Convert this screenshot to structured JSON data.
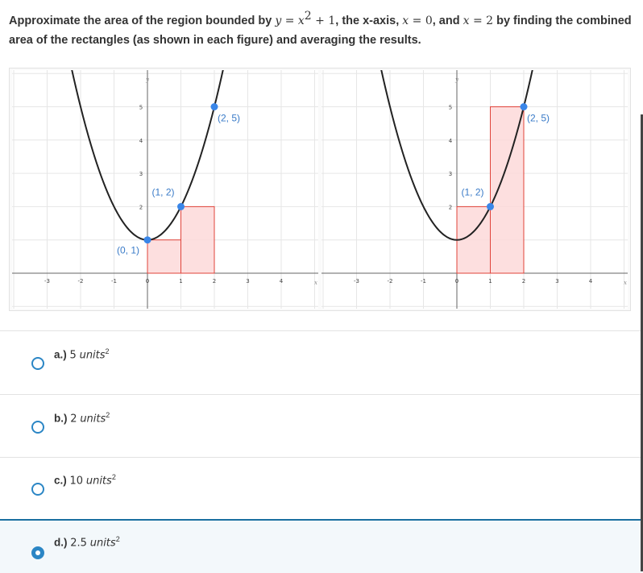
{
  "question": {
    "prefix": "Approximate the area of the region bounded by ",
    "eq_y": "y",
    "eq_eq": " = ",
    "eq_x": "x",
    "eq_exp": "2",
    "eq_plus": " + 1",
    "mid1": ", the x-axis, ",
    "x0_var": "x",
    "x0_val": " = 0",
    "mid2": ", and ",
    "x2_var": "x",
    "x2_val": " = 2",
    "suffix": " by finding the combined area of the rectangles (as shown in each figure) and averaging the results."
  },
  "graphs": [
    {
      "name": "left-endpoint",
      "x_ticks": [
        "-3",
        "-2",
        "-1",
        "0",
        "1",
        "2",
        "3",
        "4"
      ],
      "y_ticks": [
        "2",
        "3",
        "4",
        "5"
      ],
      "x_label": "x",
      "y_label": "y",
      "points": [
        {
          "x": 0,
          "y": 1,
          "label": "(0, 1)"
        },
        {
          "x": 1,
          "y": 2,
          "label": "(1, 2)"
        },
        {
          "x": 2,
          "y": 5,
          "label": "(2, 5)"
        }
      ],
      "rectangles": [
        {
          "x0": 0,
          "x1": 1,
          "height": 1
        },
        {
          "x0": 1,
          "x1": 2,
          "height": 2
        }
      ]
    },
    {
      "name": "right-endpoint",
      "x_ticks": [
        "-3",
        "-2",
        "-1",
        "0",
        "1",
        "2",
        "3",
        "4"
      ],
      "y_ticks": [
        "2",
        "3",
        "4",
        "5"
      ],
      "x_label": "x",
      "y_label": "y",
      "points": [
        {
          "x": 1,
          "y": 2,
          "label": "(1, 2)"
        },
        {
          "x": 2,
          "y": 5,
          "label": "(2, 5)"
        }
      ],
      "rectangles": [
        {
          "x0": 0,
          "x1": 1,
          "height": 2
        },
        {
          "x0": 1,
          "x1": 2,
          "height": 5
        }
      ]
    }
  ],
  "colors": {
    "curve": "#222222",
    "point": "#3a86e8",
    "label": "#3a7bc8",
    "rect_fill": "#fdd9d9",
    "rect_stroke": "#e0433a",
    "grid": "#e6e6e6",
    "axis": "#666666",
    "radio": "#2b86c5"
  },
  "options": [
    {
      "letter": "a.)",
      "value": "5",
      "unit": "units",
      "exp": "2",
      "selected": false
    },
    {
      "letter": "b.)",
      "value": "2",
      "unit": "units",
      "exp": "2",
      "selected": false
    },
    {
      "letter": "c.)",
      "value": "10",
      "unit": "units",
      "exp": "2",
      "selected": false
    },
    {
      "letter": "d.)",
      "value": "2.5",
      "unit": "units",
      "exp": "2",
      "selected": true
    }
  ]
}
